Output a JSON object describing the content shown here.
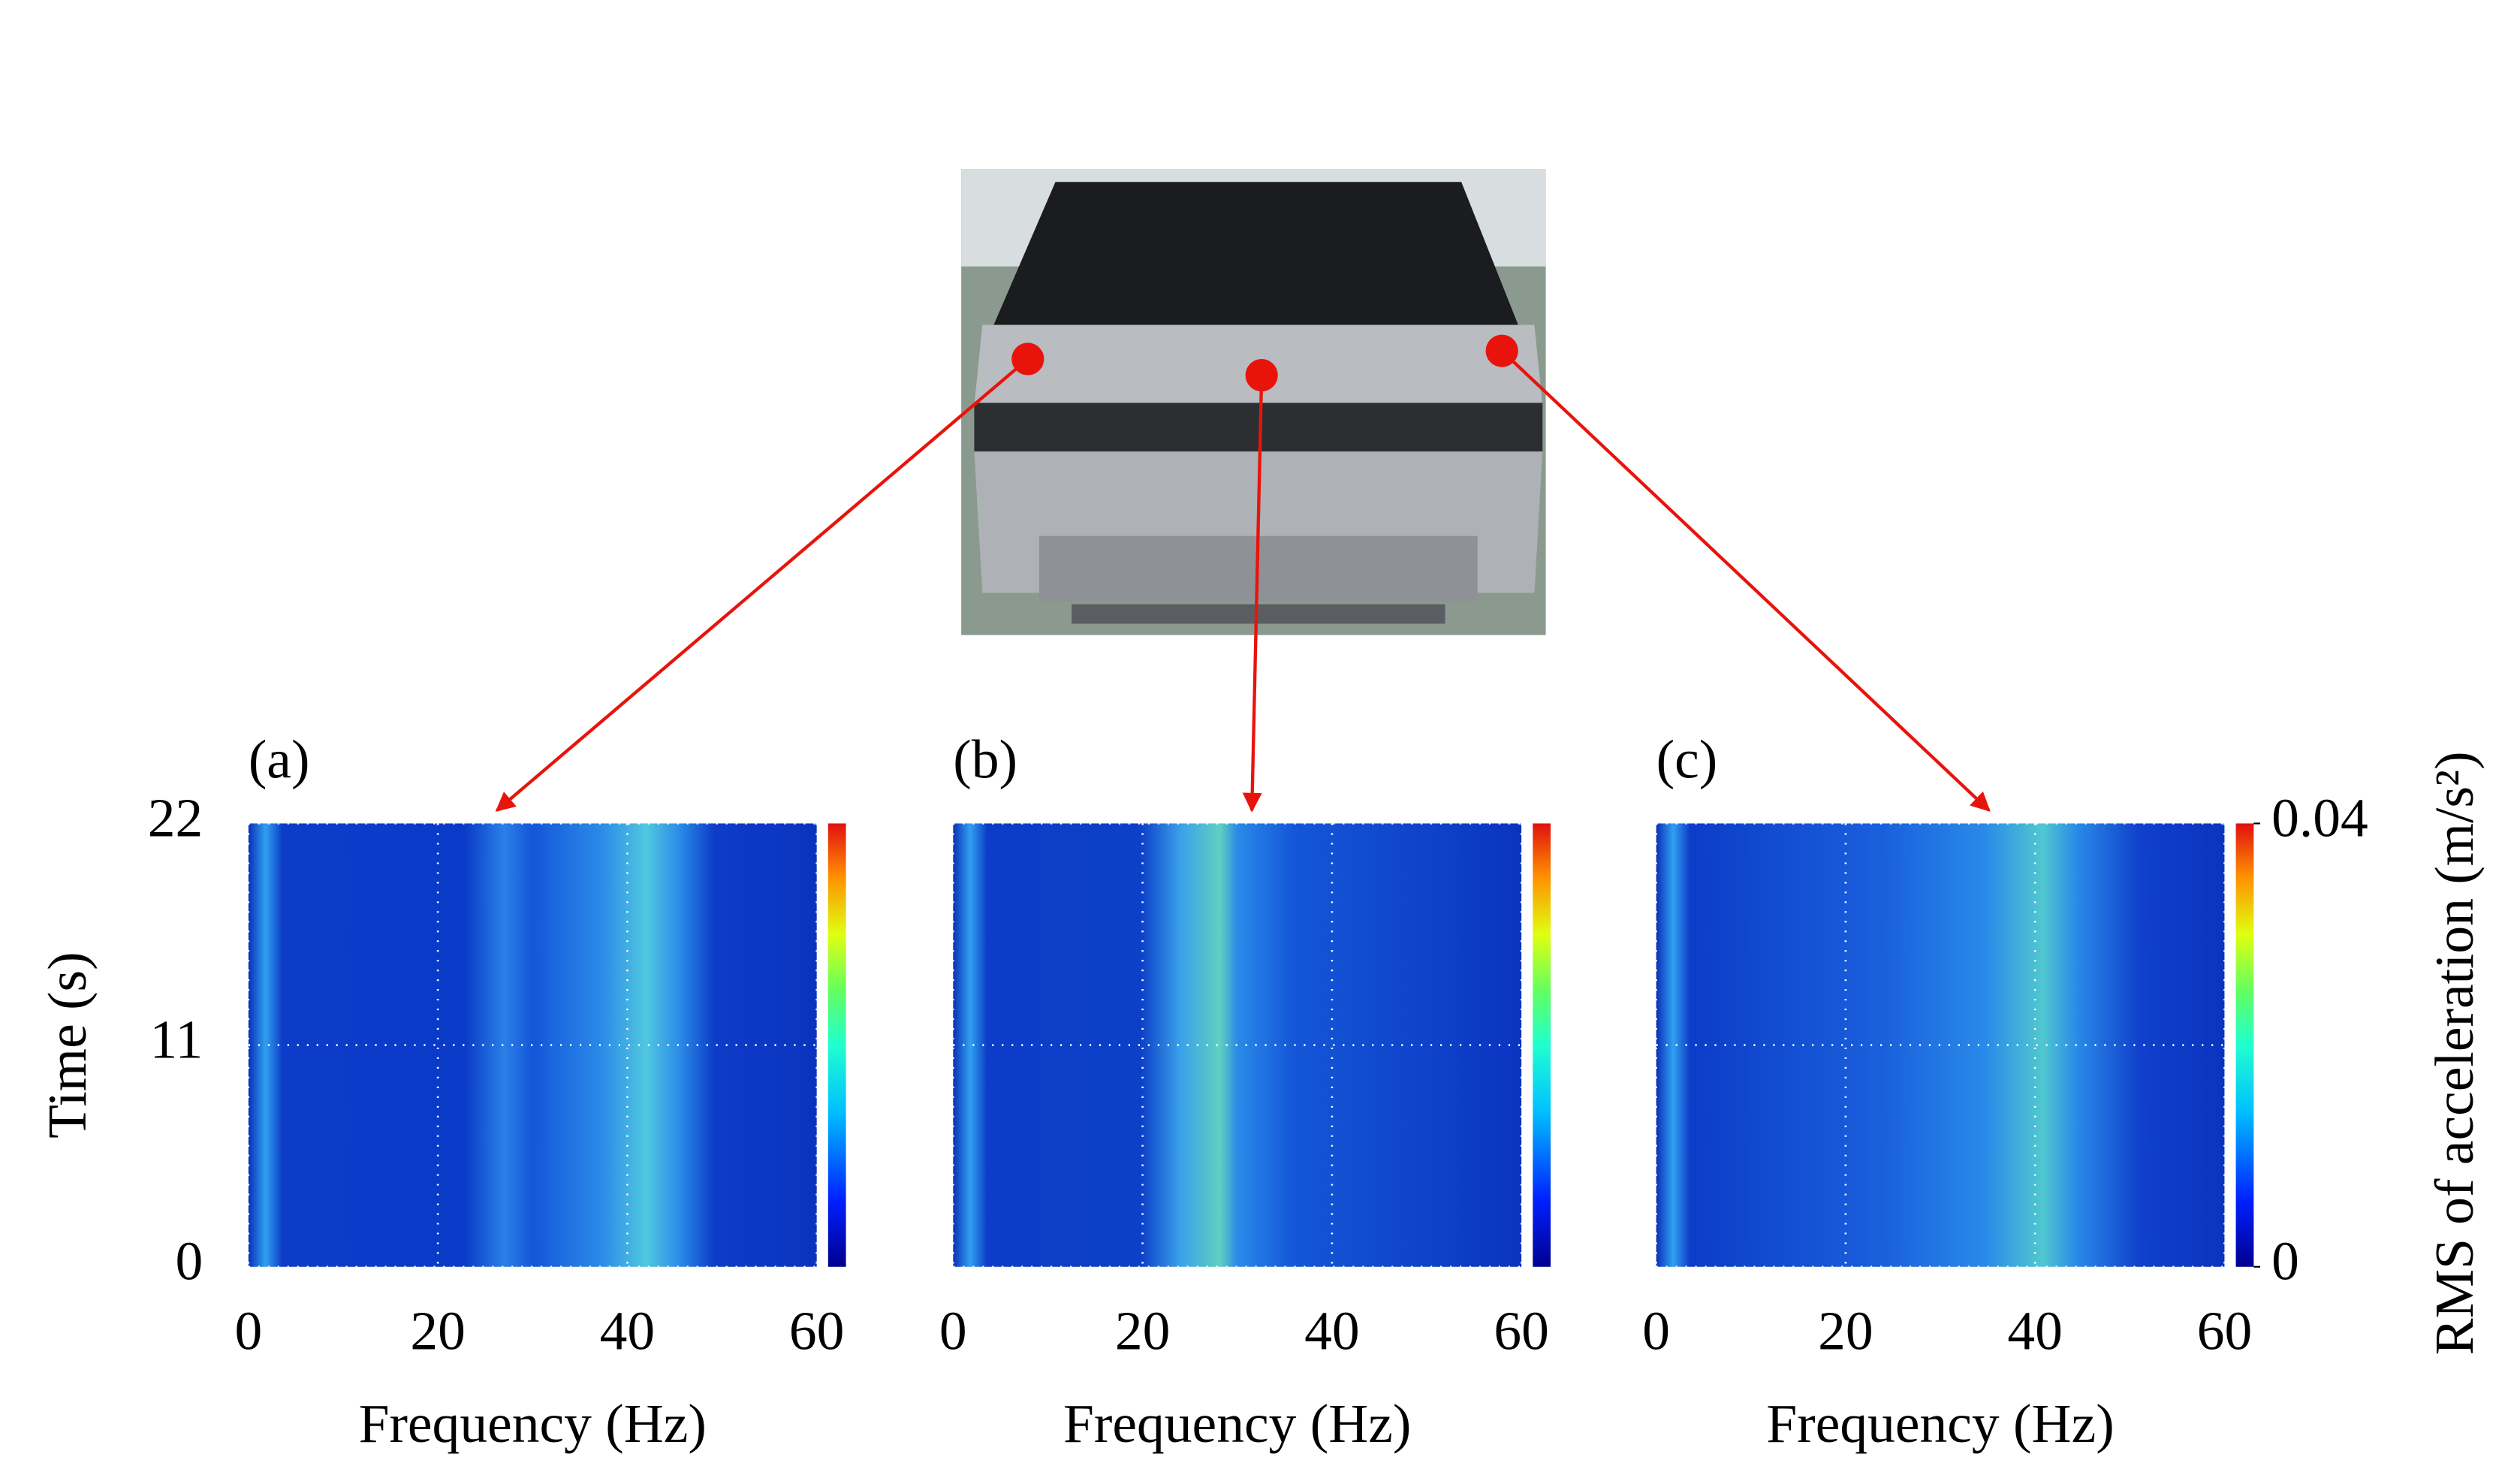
{
  "chart_data": [
    {
      "type": "heatmap",
      "panel_label": "(a)",
      "xlabel": "Frequency (Hz)",
      "ylabel": "Time (s)",
      "xlim": [
        0,
        60
      ],
      "xticks": [
        0,
        20,
        40,
        60
      ],
      "ylim": [
        0,
        22
      ],
      "yticks": [
        0,
        11,
        22
      ],
      "show_yticklabels": true,
      "colorbar": {
        "clim": [
          0,
          0.04
        ]
      }
    },
    {
      "type": "heatmap",
      "panel_label": "(b)",
      "xlabel": "Frequency (Hz)",
      "xlim": [
        0,
        60
      ],
      "xticks": [
        0,
        20,
        40,
        60
      ],
      "ylim": [
        0,
        22
      ],
      "yticks": [
        0,
        11,
        22
      ],
      "show_yticklabels": false,
      "colorbar": {
        "clim": [
          0,
          0.04
        ]
      }
    },
    {
      "type": "heatmap",
      "panel_label": "(c)",
      "xlabel": "Frequency (Hz)",
      "xlim": [
        0,
        60
      ],
      "xticks": [
        0,
        20,
        40,
        60
      ],
      "ylim": [
        0,
        22
      ],
      "yticks": [
        0,
        11,
        22
      ],
      "show_yticklabels": false,
      "colorbar": {
        "clim": [
          0,
          0.04
        ],
        "ticks": [
          0,
          0.04
        ],
        "label": "RMS of acceleration (m/s²)"
      }
    }
  ]
}
